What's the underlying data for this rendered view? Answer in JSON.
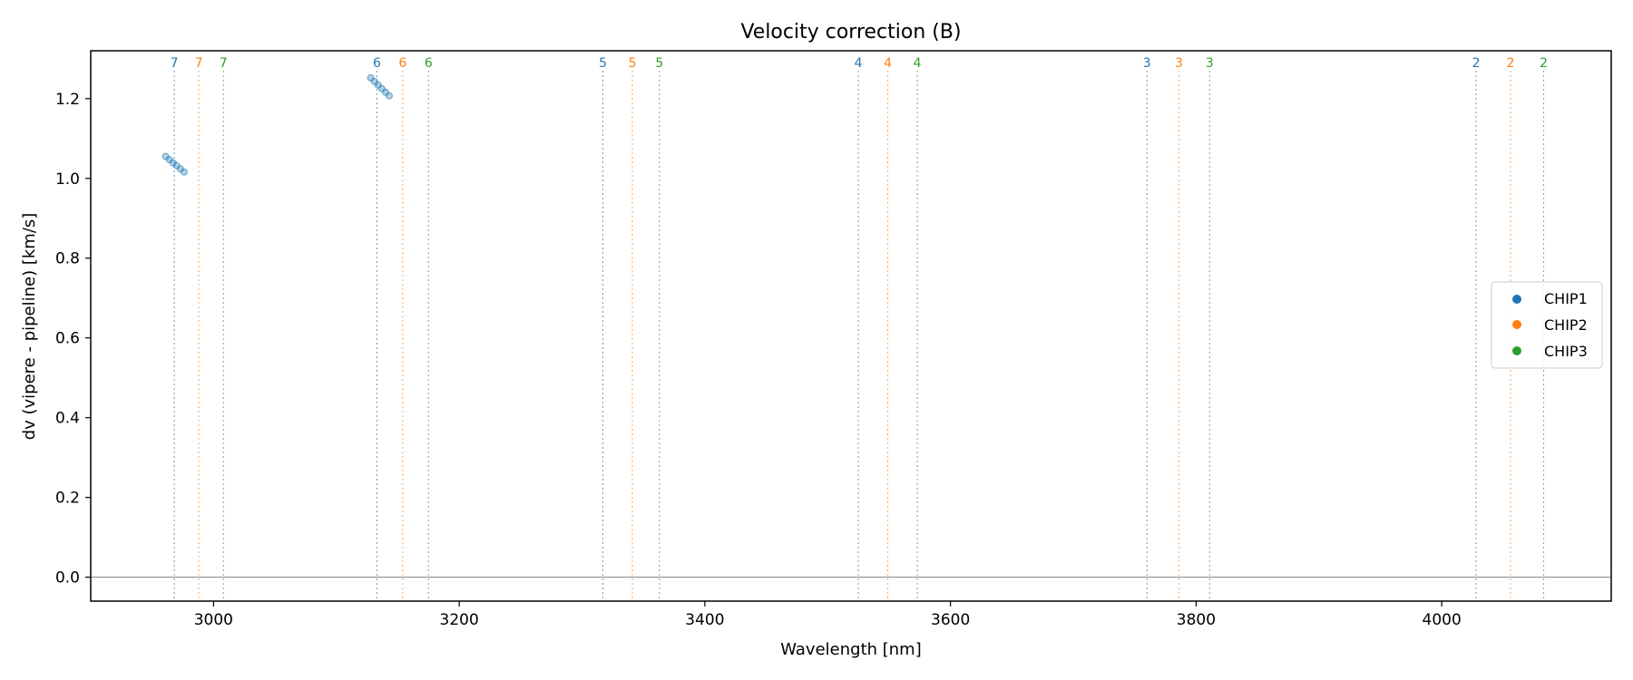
{
  "chart_data": {
    "type": "scatter",
    "title": "Velocity correction (B)",
    "xlabel": "Wavelength [nm]",
    "ylabel": "dv (vipere - pipeline) [km/s]",
    "xlim": [
      2900,
      4138
    ],
    "ylim": [
      -0.06,
      1.32
    ],
    "xticks": [
      3000,
      3200,
      3400,
      3600,
      3800,
      4000
    ],
    "yticks": [
      0.0,
      0.2,
      0.4,
      0.6,
      0.8,
      1.0,
      1.2
    ],
    "xtick_labels": [
      "3000",
      "3200",
      "3400",
      "3600",
      "3800",
      "4000"
    ],
    "ytick_labels": [
      "0.0",
      "0.2",
      "0.4",
      "0.6",
      "0.8",
      "1.0",
      "1.2"
    ],
    "grid": false,
    "zero_line": 0.0,
    "legend_position": "right",
    "colors": {
      "CHIP1": "#1f77b4",
      "CHIP2": "#ff7f0e",
      "CHIP3": "#2ca02c",
      "zero_line": "#808080"
    },
    "series": [
      {
        "name": "CHIP1",
        "x": [
          2961,
          2964,
          2967,
          2970,
          2973,
          2976,
          3128,
          3131,
          3134,
          3137,
          3140,
          3143
        ],
        "y": [
          1.055,
          1.047,
          1.039,
          1.032,
          1.024,
          1.016,
          1.252,
          1.243,
          1.234,
          1.225,
          1.216,
          1.207
        ]
      },
      {
        "name": "CHIP2",
        "x": [],
        "y": []
      },
      {
        "name": "CHIP3",
        "x": [],
        "y": []
      }
    ],
    "order_markers": [
      {
        "label": "7",
        "chip": "CHIP1",
        "x": 2968
      },
      {
        "label": "7",
        "chip": "CHIP2",
        "x": 2988
      },
      {
        "label": "7",
        "chip": "CHIP3",
        "x": 3008
      },
      {
        "label": "6",
        "chip": "CHIP1",
        "x": 3133
      },
      {
        "label": "6",
        "chip": "CHIP2",
        "x": 3154
      },
      {
        "label": "6",
        "chip": "CHIP3",
        "x": 3175
      },
      {
        "label": "5",
        "chip": "CHIP1",
        "x": 3317
      },
      {
        "label": "5",
        "chip": "CHIP2",
        "x": 3341
      },
      {
        "label": "5",
        "chip": "CHIP3",
        "x": 3363
      },
      {
        "label": "4",
        "chip": "CHIP1",
        "x": 3525
      },
      {
        "label": "4",
        "chip": "CHIP2",
        "x": 3549
      },
      {
        "label": "4",
        "chip": "CHIP3",
        "x": 3573
      },
      {
        "label": "3",
        "chip": "CHIP1",
        "x": 3760
      },
      {
        "label": "3",
        "chip": "CHIP2",
        "x": 3786
      },
      {
        "label": "3",
        "chip": "CHIP3",
        "x": 3811
      },
      {
        "label": "2",
        "chip": "CHIP1",
        "x": 4028
      },
      {
        "label": "2",
        "chip": "CHIP2",
        "x": 4056
      },
      {
        "label": "2",
        "chip": "CHIP3",
        "x": 4083
      }
    ]
  }
}
